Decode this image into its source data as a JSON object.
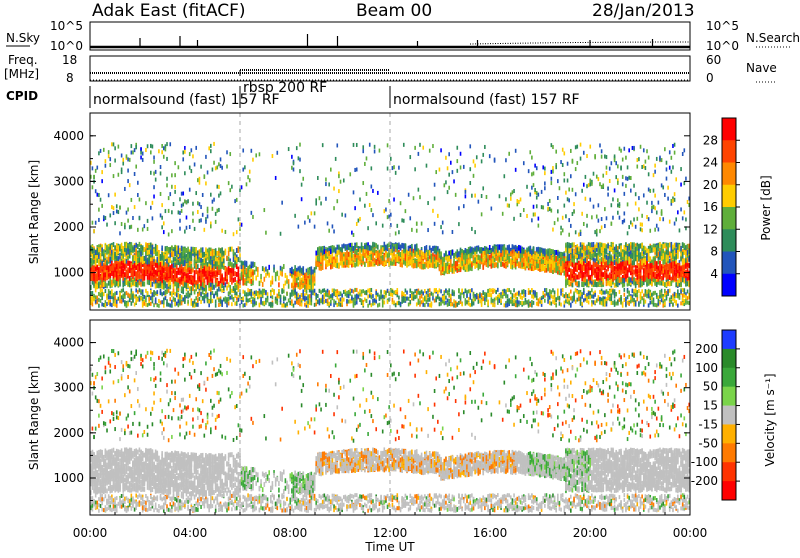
{
  "header": {
    "station": "Adak East (fitACF)",
    "beam": "Beam 00",
    "date": "28/Jan/2013"
  },
  "top_panels": {
    "nsky_label": "N.Sky",
    "nsearch_label": "N.Search",
    "nsky_ticks": [
      "10^5",
      "10^0"
    ],
    "nsearch_ticks": [
      "10^5",
      "10^0"
    ],
    "freq_label_1": "Freq.",
    "freq_label_2": "[MHz]",
    "freq_ticks": [
      "18",
      "8"
    ],
    "nave_label": "Nave",
    "nave_ticks": [
      "60",
      "0"
    ],
    "cpid_label": "CPID",
    "cpid_segments": [
      {
        "text": "normalsound (fast) 157 RF",
        "start_h": 0,
        "end_h": 6
      },
      {
        "text": "rbsp 200 RF",
        "start_h": 6,
        "end_h": 12
      },
      {
        "text": "normalsound (fast) 157 RF",
        "start_h": 12,
        "end_h": 24
      }
    ]
  },
  "chart_data": [
    {
      "type": "heatmap",
      "title": "",
      "xlabel": "",
      "ylabel": "Slant Range [km]",
      "ylim": [
        180,
        4500
      ],
      "xlim_hours": [
        0,
        24
      ],
      "y_ticks": [
        "4000",
        "3000",
        "2000",
        "1000"
      ],
      "colorbar": {
        "label": "Power [dB]",
        "tick_labels": [
          "28",
          "24",
          "20",
          "16",
          "12",
          "8",
          "4"
        ],
        "colors": [
          "#ff0000",
          "#ff4400",
          "#ff8800",
          "#ffcc00",
          "#5fae3a",
          "#2e8c5a",
          "#2255bb",
          "#0000ff"
        ]
      }
    },
    {
      "type": "heatmap",
      "title": "",
      "xlabel": "Time UT",
      "ylabel": "Slant Range [km]",
      "ylim": [
        180,
        4500
      ],
      "xlim_hours": [
        0,
        24
      ],
      "y_ticks": [
        "4000",
        "3000",
        "2000",
        "1000"
      ],
      "x_ticks": [
        "00:00",
        "04:00",
        "08:00",
        "12:00",
        "16:00",
        "20:00",
        "00:00"
      ],
      "colorbar": {
        "label": "Velocity [m s⁻¹]",
        "tick_labels": [
          "200",
          "100",
          "50",
          "15",
          "-15",
          "-50",
          "-100",
          "-200"
        ],
        "colors": [
          "#1e3cff",
          "#2a8a2a",
          "#3aa83a",
          "#7ad44a",
          "#c0c0c0",
          "#ffb000",
          "#ff7a00",
          "#ff3300",
          "#ff0000"
        ]
      }
    }
  ]
}
